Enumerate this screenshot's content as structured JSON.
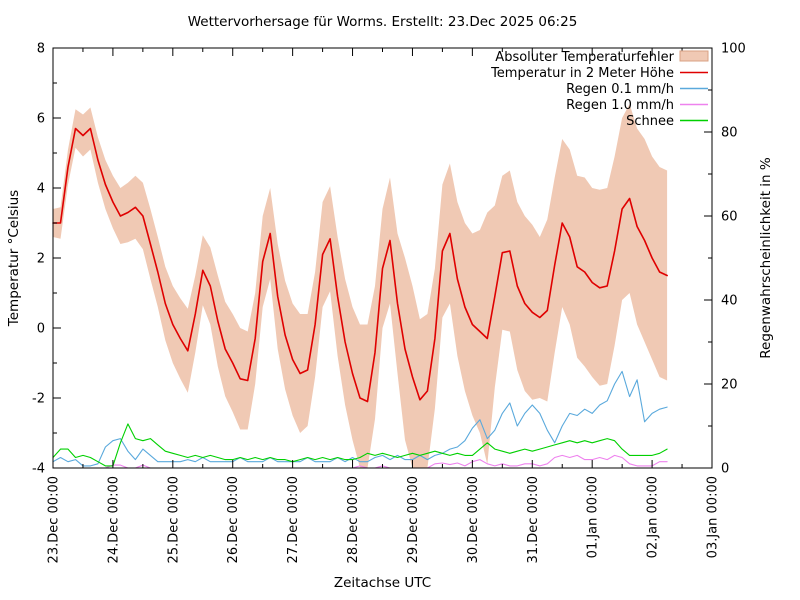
{
  "chart_data": {
    "type": "line",
    "title": "Wettervorhersage für Worms. Erstellt: 23.Dec 2025 06:25",
    "xlabel": "Zeitachse UTC",
    "ylabel_left": "Temperatur °Celsius",
    "ylabel_right": "Regenwahrscheinlichkeit in %",
    "y_left": {
      "min": -4,
      "max": 8,
      "major_ticks": [
        -4,
        -2,
        0,
        2,
        4,
        6,
        8
      ],
      "minor_ticks": [
        -3,
        -1,
        1,
        3,
        5,
        7
      ]
    },
    "y_right": {
      "min": 0,
      "max": 100,
      "major_ticks": [
        0,
        20,
        40,
        60,
        80,
        100
      ],
      "minor_ticks": [
        10,
        30,
        50,
        70,
        90
      ]
    },
    "x": {
      "span_days": 11,
      "tick_labels": [
        "23.Dec 00:00",
        "24.Dec 00:00",
        "25.Dec 00:00",
        "26.Dec 00:00",
        "27.Dec 00:00",
        "28.Dec 00:00",
        "29.Dec 00:00",
        "30.Dec 00:00",
        "31.Dec 00:00",
        "01.Jan 00:00",
        "02.Jan 00:00",
        "03.Jan 00:00"
      ],
      "minor_step_days": 0.5
    },
    "sample_step_days": 0.125,
    "legend_order": [
      "band",
      "temperature",
      "rain01",
      "rain10",
      "snow"
    ],
    "band": {
      "label": "Absoluter Temperaturfehler",
      "center_key": "temperature",
      "fill": "#f0c9b4",
      "edge": "#d9a183",
      "half_width": [
        0.4,
        0.45,
        0.5,
        0.55,
        0.6,
        0.6,
        0.65,
        0.7,
        0.75,
        0.8,
        0.85,
        0.9,
        0.95,
        1.0,
        1.0,
        1.05,
        1.1,
        1.15,
        1.2,
        1.1,
        1.0,
        1.1,
        1.3,
        1.35,
        1.4,
        1.45,
        1.4,
        1.3,
        1.3,
        1.3,
        1.5,
        1.55,
        1.6,
        1.7,
        1.6,
        1.5,
        1.5,
        1.5,
        1.7,
        1.8,
        1.9,
        2.1,
        2.2,
        1.9,
        1.7,
        1.8,
        2.0,
        2.6,
        2.6,
        2.3,
        2.2,
        2.0,
        1.9,
        2.0,
        2.2,
        2.4,
        2.6,
        2.9,
        3.6,
        2.6,
        2.2,
        2.3,
        2.4,
        2.5,
        2.5,
        2.3,
        2.6,
        2.5,
        2.4,
        2.5,
        2.6,
        2.7,
        2.7,
        2.8,
        2.8,
        2.7,
        2.6,
        2.7,
        2.8,
        2.9,
        2.9,
        3.0,
        3.0
      ]
    },
    "series": [
      {
        "key": "temperature",
        "label": "Temperatur in 2 Meter Höhe",
        "axis": "left",
        "color": "#df0000",
        "width": 1.6,
        "values": [
          3.0,
          3.0,
          4.6,
          5.7,
          5.5,
          5.7,
          4.8,
          4.1,
          3.6,
          3.2,
          3.3,
          3.45,
          3.2,
          2.4,
          1.6,
          0.7,
          0.1,
          -0.3,
          -0.65,
          0.4,
          1.65,
          1.2,
          0.2,
          -0.6,
          -1.0,
          -1.45,
          -1.5,
          -0.3,
          1.9,
          2.7,
          0.9,
          -0.2,
          -0.9,
          -1.3,
          -1.2,
          0.1,
          2.1,
          2.55,
          0.9,
          -0.4,
          -1.3,
          -2.0,
          -2.1,
          -0.7,
          1.7,
          2.5,
          0.7,
          -0.6,
          -1.4,
          -2.05,
          -1.8,
          -0.3,
          2.2,
          2.7,
          1.4,
          0.6,
          0.1,
          -0.1,
          -0.3,
          0.9,
          2.15,
          2.2,
          1.2,
          0.7,
          0.45,
          0.3,
          0.5,
          1.8,
          3.0,
          2.6,
          1.75,
          1.6,
          1.3,
          1.15,
          1.2,
          2.2,
          3.4,
          3.7,
          2.9,
          2.5,
          2.0,
          1.6,
          1.5
        ]
      },
      {
        "key": "rain01",
        "label": "Regen 0.1 mm/h",
        "axis": "right",
        "color": "#5aa9dc",
        "width": 1.1,
        "values": [
          1.5,
          2.5,
          1.5,
          2.0,
          0.5,
          0.5,
          1.0,
          5.0,
          6.5,
          7.0,
          4.0,
          2.0,
          4.5,
          3.0,
          1.5,
          1.5,
          1.5,
          1.5,
          2.0,
          1.5,
          2.5,
          1.5,
          1.5,
          1.5,
          1.5,
          2.5,
          1.5,
          1.5,
          1.5,
          2.5,
          1.5,
          1.5,
          1.5,
          1.5,
          2.5,
          1.5,
          1.5,
          1.5,
          2.5,
          1.5,
          2.5,
          1.5,
          1.5,
          2.5,
          3.0,
          2.0,
          3.0,
          2.0,
          2.0,
          3.0,
          2.0,
          3.0,
          3.5,
          4.5,
          5.0,
          6.5,
          9.5,
          11.5,
          7.0,
          9.0,
          13.0,
          15.5,
          10.0,
          13.0,
          15.0,
          13.0,
          9.0,
          6.0,
          10.0,
          13.0,
          12.5,
          14.0,
          13.0,
          15.0,
          16.0,
          20.0,
          23.0,
          17.0,
          21.0,
          11.0,
          13.0,
          14.0,
          14.5
        ]
      },
      {
        "key": "rain10",
        "label": "Regen 1.0 mm/h",
        "axis": "right",
        "color": "#ee82ee",
        "width": 1.1,
        "values": [
          0,
          0,
          0,
          0,
          0,
          0,
          0,
          0,
          0.7,
          0.7,
          0,
          0,
          0.7,
          0,
          0,
          0,
          0,
          0,
          0,
          0,
          0,
          0,
          0,
          0,
          0,
          0,
          0,
          0,
          0,
          0,
          0,
          0,
          0,
          0,
          0,
          0,
          0,
          0,
          0,
          0,
          0,
          0.5,
          0,
          0,
          0.5,
          0,
          0,
          0,
          0,
          0,
          0,
          1.0,
          1.2,
          0.8,
          1.2,
          0.5,
          1.5,
          2.0,
          1.0,
          0.5,
          1.0,
          0.5,
          0.5,
          1.0,
          1.0,
          0.5,
          1.0,
          2.5,
          3.0,
          2.5,
          3.0,
          2.0,
          2.0,
          2.5,
          2.0,
          3.0,
          2.5,
          1.0,
          0.5,
          0.5,
          0.5,
          1.5,
          1.5
        ]
      },
      {
        "key": "snow",
        "label": "Schnee",
        "axis": "right",
        "color": "#00d000",
        "width": 1.1,
        "values": [
          2.5,
          4.5,
          4.5,
          2.5,
          3.0,
          2.5,
          1.5,
          0.5,
          0.5,
          6.0,
          10.5,
          7.0,
          6.5,
          7.0,
          5.5,
          4.0,
          3.5,
          3.0,
          2.5,
          3.0,
          2.5,
          3.0,
          2.5,
          2.0,
          2.0,
          2.5,
          2.0,
          2.5,
          2.0,
          2.5,
          2.0,
          2.0,
          1.5,
          2.0,
          2.5,
          2.0,
          2.5,
          2.0,
          2.5,
          2.0,
          2.0,
          2.5,
          3.5,
          3.0,
          3.5,
          3.0,
          2.5,
          3.0,
          3.5,
          3.0,
          3.5,
          4.0,
          3.5,
          3.0,
          3.5,
          3.0,
          3.0,
          4.5,
          6.0,
          4.5,
          4.0,
          3.5,
          4.0,
          4.5,
          4.0,
          4.5,
          5.0,
          5.5,
          6.0,
          6.5,
          6.0,
          6.5,
          6.0,
          6.5,
          7.0,
          6.5,
          4.5,
          3.0,
          3.0,
          3.0,
          3.0,
          3.5,
          4.5
        ]
      }
    ],
    "colors": {
      "axis": "#000000",
      "text": "#000000",
      "background": "#ffffff"
    }
  }
}
